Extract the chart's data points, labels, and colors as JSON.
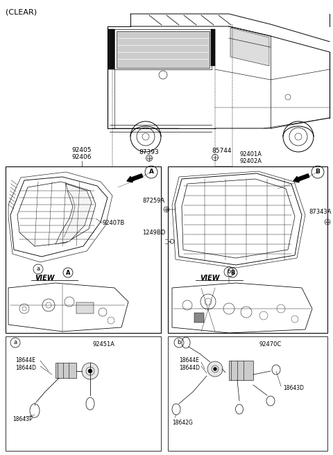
{
  "bg_color": "#ffffff",
  "parts": {
    "clear": "(CLEAR)",
    "p87393": "87393",
    "p85744": "85744",
    "p92405": "92405",
    "p92406": "92406",
    "p92401A": "92401A",
    "p92402A": "92402A",
    "p87259A": "87259A",
    "p92407B": "92407B",
    "p1249BD": "1249BD",
    "p87343A": "87343A",
    "p92451A": "92451A",
    "p18644E": "18644E",
    "p18644D": "18644D",
    "p18643P": "18643P",
    "p92470C": "92470C",
    "p18643D": "18643D",
    "p18642G": "18642G",
    "view_A": "VIEW",
    "view_B": "VIEW"
  },
  "lw": 0.7,
  "fs": 6.5
}
